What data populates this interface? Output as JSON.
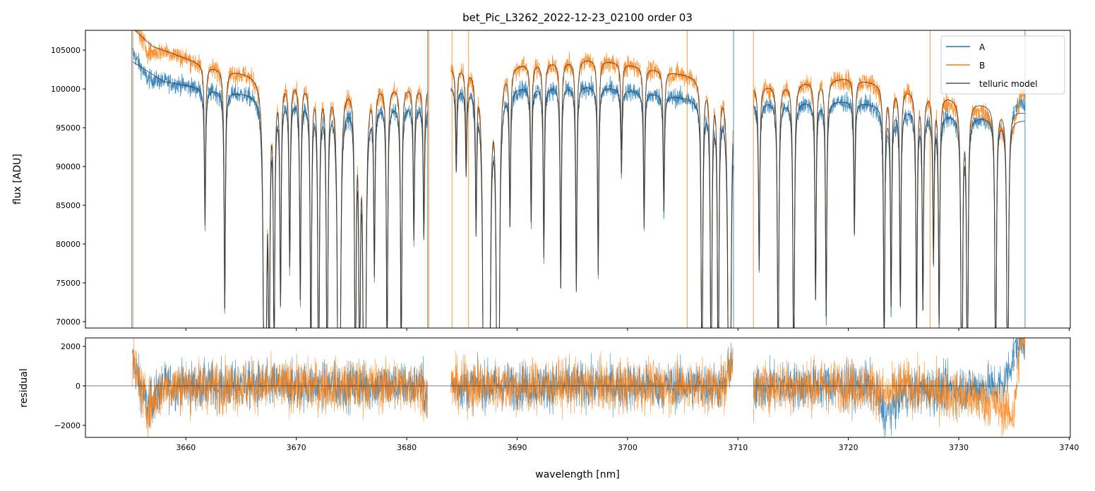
{
  "chart_data": [
    {
      "type": "line",
      "panel": "spectrum",
      "title": "bet_Pic_L3262_2022-12-23_02100  order 03",
      "xlabel": "",
      "ylabel": "flux [ADU]",
      "xlim": [
        3650.9,
        3740.1
      ],
      "ylim": [
        69180,
        107550
      ],
      "xticks": [
        3660,
        3670,
        3680,
        3690,
        3700,
        3710,
        3720,
        3730,
        3740
      ],
      "yticks": [
        70000,
        75000,
        80000,
        85000,
        90000,
        95000,
        100000,
        105000
      ],
      "ytick_labels": [
        "70000",
        "75000",
        "80000",
        "85000",
        "90000",
        "95000",
        "100000",
        "105000"
      ],
      "legend": {
        "placement": "top-right",
        "entries": [
          "A",
          "B",
          "telluric model"
        ]
      },
      "colors": {
        "A": "#1f77b4",
        "B": "#ff7f0e",
        "model": "#333333"
      },
      "data_segments_nm": [
        [
          3655.15,
          3681.9
        ],
        [
          3684.0,
          3709.55
        ],
        [
          3711.4,
          3736.0
        ]
      ],
      "continuum_A": [
        [
          3655.2,
          103500
        ],
        [
          3658,
          101000
        ],
        [
          3662,
          100000
        ],
        [
          3670,
          99000
        ],
        [
          3681.9,
          98000
        ],
        [
          3684,
          100500
        ],
        [
          3697,
          100500
        ],
        [
          3705,
          99000
        ],
        [
          3709.5,
          98000
        ],
        [
          3711.4,
          98500
        ],
        [
          3720,
          98500
        ],
        [
          3728,
          97000
        ],
        [
          3736,
          96000
        ]
      ],
      "continuum_B": [
        [
          3655.2,
          107800
        ],
        [
          3657,
          105500
        ],
        [
          3662,
          103000
        ],
        [
          3668,
          101500
        ],
        [
          3681.9,
          100500
        ],
        [
          3684,
          103000
        ],
        [
          3697,
          104000
        ],
        [
          3705,
          102000
        ],
        [
          3709.5,
          101000
        ],
        [
          3711.4,
          100500
        ],
        [
          3720,
          101500
        ],
        [
          3728,
          99500
        ],
        [
          3736,
          97000
        ]
      ],
      "absorption_lines": [
        {
          "nm": 3661.73,
          "depth": 0.08
        },
        {
          "nm": 3663.52,
          "depth": 0.13
        },
        {
          "nm": 3667.16,
          "depth": 0.45
        },
        {
          "nm": 3667.54,
          "depth": 0.18
        },
        {
          "nm": 3667.99,
          "depth": 0.16
        },
        {
          "nm": 3668.57,
          "depth": 0.12
        },
        {
          "nm": 3669.4,
          "depth": 0.1
        },
        {
          "nm": 3670.36,
          "depth": 0.12
        },
        {
          "nm": 3671.32,
          "depth": 0.17
        },
        {
          "nm": 3672.02,
          "depth": 0.22
        },
        {
          "nm": 3672.79,
          "depth": 0.21
        },
        {
          "nm": 3673.87,
          "depth": 0.45
        },
        {
          "nm": 3675.35,
          "depth": 0.2
        },
        {
          "nm": 3675.73,
          "depth": 0.19
        },
        {
          "nm": 3676.18,
          "depth": 0.4
        },
        {
          "nm": 3677.07,
          "depth": 0.1
        },
        {
          "nm": 3678.22,
          "depth": 0.16
        },
        {
          "nm": 3679.5,
          "depth": 0.16
        },
        {
          "nm": 3680.65,
          "depth": 0.08
        },
        {
          "nm": 3681.55,
          "depth": 0.08
        },
        {
          "nm": 3684.49,
          "depth": 0.05
        },
        {
          "nm": 3685.38,
          "depth": 0.05
        },
        {
          "nm": 3686.28,
          "depth": 0.08
        },
        {
          "nm": 3687.04,
          "depth": 0.45
        },
        {
          "nm": 3687.43,
          "depth": 0.45
        },
        {
          "nm": 3688.26,
          "depth": 0.45
        },
        {
          "nm": 3689.35,
          "depth": 0.08
        },
        {
          "nm": 3691.27,
          "depth": 0.08
        },
        {
          "nm": 3692.42,
          "depth": 0.1
        },
        {
          "nm": 3693.95,
          "depth": 0.12
        },
        {
          "nm": 3695.36,
          "depth": 0.12
        },
        {
          "nm": 3697.34,
          "depth": 0.11
        },
        {
          "nm": 3699.45,
          "depth": 0.05
        },
        {
          "nm": 3701.5,
          "depth": 0.08
        },
        {
          "nm": 3703.29,
          "depth": 0.07
        },
        {
          "nm": 3706.74,
          "depth": 0.21
        },
        {
          "nm": 3707.57,
          "depth": 0.21
        },
        {
          "nm": 3708.21,
          "depth": 0.2
        },
        {
          "nm": 3709.23,
          "depth": 0.45
        },
        {
          "nm": 3711.92,
          "depth": 0.1
        },
        {
          "nm": 3713.64,
          "depth": 0.19
        },
        {
          "nm": 3715.05,
          "depth": 0.2
        },
        {
          "nm": 3717.03,
          "depth": 0.12
        },
        {
          "nm": 3717.99,
          "depth": 0.13
        },
        {
          "nm": 3720.55,
          "depth": 0.08
        },
        {
          "nm": 3723.24,
          "depth": 0.15
        },
        {
          "nm": 3723.87,
          "depth": 0.12
        },
        {
          "nm": 3724.71,
          "depth": 0.12
        },
        {
          "nm": 3726.18,
          "depth": 0.14
        },
        {
          "nm": 3726.75,
          "depth": 0.12
        },
        {
          "nm": 3727.71,
          "depth": 0.09
        },
        {
          "nm": 3728.22,
          "depth": 0.13
        },
        {
          "nm": 3730.27,
          "depth": 0.25
        },
        {
          "nm": 3730.78,
          "depth": 0.2
        },
        {
          "nm": 3733.34,
          "depth": 0.2
        },
        {
          "nm": 3734.43,
          "depth": 0.25
        }
      ],
      "spikes": [
        {
          "series": "A",
          "nm": 3655.1
        },
        {
          "series": "B",
          "nm": 3655.2
        },
        {
          "series": "A",
          "nm": 3681.9
        },
        {
          "series": "B",
          "nm": 3682.0
        },
        {
          "series": "B",
          "nm": 3684.1
        },
        {
          "series": "B",
          "nm": 3685.6
        },
        {
          "series": "B",
          "nm": 3705.4
        },
        {
          "series": "A",
          "nm": 3709.6
        },
        {
          "series": "B",
          "nm": 3711.4
        },
        {
          "series": "B",
          "nm": 3727.4
        },
        {
          "series": "A",
          "nm": 3736.0
        }
      ],
      "noise_rms_adu": 600
    },
    {
      "type": "line",
      "panel": "residual",
      "xlabel": "wavelength [nm]",
      "ylabel": "residual",
      "xlim": [
        3650.9,
        3740.1
      ],
      "ylim": [
        -2610,
        2430
      ],
      "xticks": [
        3660,
        3670,
        3680,
        3690,
        3700,
        3710,
        3720,
        3730,
        3740
      ],
      "xtick_labels": [
        "3660",
        "3670",
        "3680",
        "3690",
        "3700",
        "3710",
        "3720",
        "3730",
        "3740"
      ],
      "yticks": [
        -2000,
        0,
        2000
      ],
      "ytick_labels": [
        "−2000",
        "0",
        "2000"
      ],
      "trend_A": [
        [
          3655.2,
          1200
        ],
        [
          3656.5,
          -1000
        ],
        [
          3658,
          0
        ],
        [
          3681.5,
          0
        ],
        [
          3681.9,
          -800
        ],
        [
          3684,
          0
        ],
        [
          3708.8,
          0
        ],
        [
          3709.5,
          1500
        ],
        [
          3711.4,
          -500
        ],
        [
          3712,
          0
        ],
        [
          3722,
          0
        ],
        [
          3723.5,
          -1500
        ],
        [
          3725,
          -300
        ],
        [
          3734,
          0
        ],
        [
          3735.5,
          2400
        ],
        [
          3736,
          2400
        ]
      ],
      "trend_B": [
        [
          3655.2,
          1200
        ],
        [
          3656.5,
          -1200
        ],
        [
          3658,
          0
        ],
        [
          3681.5,
          0
        ],
        [
          3681.9,
          -800
        ],
        [
          3684,
          0
        ],
        [
          3708.8,
          0
        ],
        [
          3709.5,
          1500
        ],
        [
          3711.4,
          -500
        ],
        [
          3712,
          0
        ],
        [
          3722,
          0
        ],
        [
          3723.5,
          -500
        ],
        [
          3725,
          0
        ],
        [
          3733,
          -800
        ],
        [
          3735,
          -1500
        ],
        [
          3735.6,
          2400
        ],
        [
          3736,
          2400
        ]
      ]
    }
  ]
}
